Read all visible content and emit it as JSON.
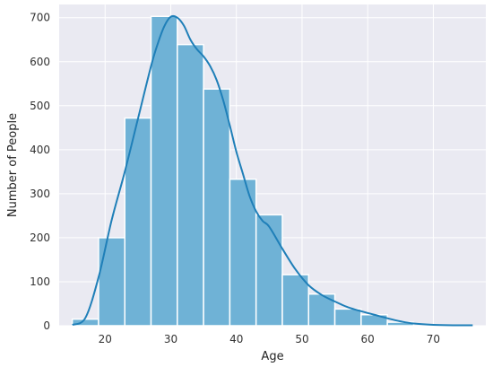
{
  "chart_data": {
    "type": "bar",
    "subtype": "histogram-with-kde",
    "title": "",
    "xlabel": "Age",
    "ylabel": "Number of People",
    "xlim": [
      13,
      78
    ],
    "ylim": [
      0,
      730
    ],
    "x_ticks": [
      20,
      30,
      40,
      50,
      60,
      70
    ],
    "y_ticks": [
      0,
      100,
      200,
      300,
      400,
      500,
      600,
      700
    ],
    "grid": true,
    "legend": "none",
    "colors": {
      "background": "#eaeaf2",
      "grid": "#ffffff",
      "bar_fill": "#6fb2d6",
      "bar_edge": "#ffffff",
      "kde_line": "#1f7fb8"
    },
    "bins": [
      {
        "start": 15,
        "end": 19,
        "value": 15
      },
      {
        "start": 19,
        "end": 23,
        "value": 200
      },
      {
        "start": 23,
        "end": 27,
        "value": 472
      },
      {
        "start": 27,
        "end": 31,
        "value": 703
      },
      {
        "start": 31,
        "end": 35,
        "value": 639
      },
      {
        "start": 35,
        "end": 39,
        "value": 538
      },
      {
        "start": 39,
        "end": 43,
        "value": 333
      },
      {
        "start": 43,
        "end": 47,
        "value": 252
      },
      {
        "start": 47,
        "end": 51,
        "value": 116
      },
      {
        "start": 51,
        "end": 55,
        "value": 72
      },
      {
        "start": 55,
        "end": 59,
        "value": 38
      },
      {
        "start": 59,
        "end": 63,
        "value": 25
      },
      {
        "start": 63,
        "end": 67,
        "value": 8
      }
    ],
    "kde": {
      "x": [
        15,
        17,
        19,
        21,
        23,
        25,
        27,
        28,
        29,
        30,
        31,
        32,
        33,
        34,
        35,
        36,
        37,
        38,
        39,
        40,
        41,
        42,
        43,
        44,
        45,
        47,
        49,
        51,
        53,
        55,
        57,
        59,
        61,
        63,
        65,
        67,
        70,
        73,
        76
      ],
      "y": [
        2,
        18,
        110,
        240,
        350,
        470,
        590,
        640,
        680,
        702,
        700,
        682,
        650,
        628,
        612,
        590,
        558,
        512,
        455,
        395,
        345,
        295,
        260,
        238,
        225,
        175,
        128,
        92,
        70,
        55,
        42,
        33,
        25,
        17,
        10,
        5,
        2,
        1,
        1
      ]
    }
  }
}
